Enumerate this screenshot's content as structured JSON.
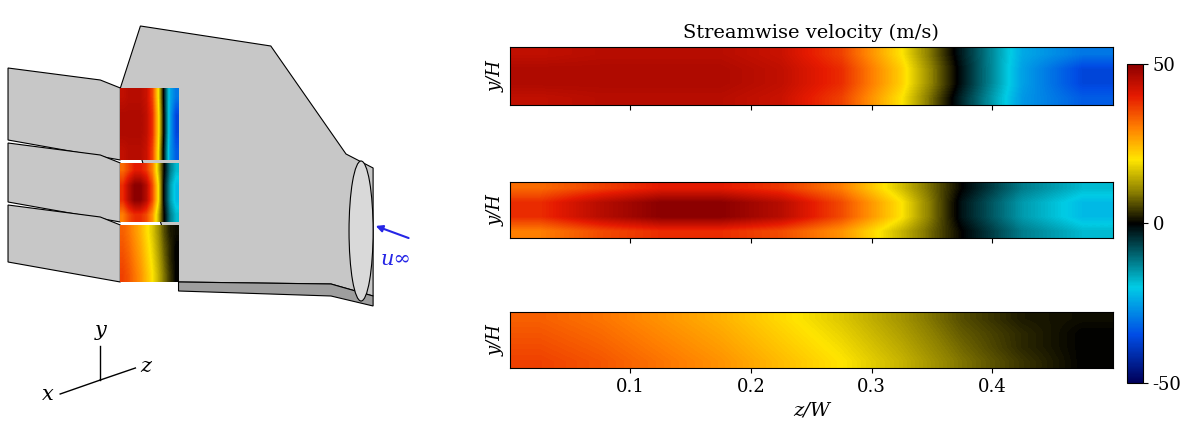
{
  "chart_data": {
    "type": "heatmap",
    "title": "Streamwise velocity (m/s)",
    "x_label": "z/W",
    "y_label": "y/H",
    "xlim": [
      0,
      0.5
    ],
    "xticks": [
      0.1,
      0.2,
      0.3,
      0.4
    ],
    "ylim": [
      0,
      1
    ],
    "tick_labels": "x",
    "colorbar": {
      "range": [
        -50,
        50
      ],
      "ticks": [
        -50,
        0,
        50
      ]
    },
    "panels": [
      {
        "cells": [
          [
            44,
            45,
            45,
            45,
            43,
            36,
            20,
            -4,
            -26,
            -33
          ],
          [
            46,
            46,
            46,
            46,
            44,
            38,
            22,
            -2,
            -25,
            -36
          ],
          [
            46,
            46,
            46,
            46,
            44,
            38,
            22,
            -2,
            -25,
            -36
          ],
          [
            44,
            45,
            45,
            45,
            43,
            36,
            20,
            -3,
            -24,
            -30
          ]
        ]
      },
      {
        "cells": [
          [
            30,
            35,
            38,
            38,
            35,
            28,
            15,
            0,
            -12,
            -18
          ],
          [
            38,
            45,
            50,
            50,
            45,
            35,
            20,
            -2,
            -15,
            -22
          ],
          [
            38,
            45,
            50,
            50,
            45,
            35,
            20,
            -2,
            -15,
            -22
          ],
          [
            32,
            36,
            40,
            40,
            37,
            30,
            16,
            0,
            -12,
            -18
          ]
        ]
      },
      {
        "cells": [
          [
            36,
            34,
            31,
            28,
            24,
            20,
            15,
            9,
            4,
            0
          ],
          [
            35,
            33,
            30,
            27,
            23,
            19,
            14,
            8,
            3,
            0
          ],
          [
            34,
            32,
            29,
            26,
            22,
            18,
            13,
            7,
            3,
            0
          ],
          [
            33,
            31,
            28,
            25,
            21,
            17,
            12,
            6,
            2,
            1
          ]
        ]
      }
    ]
  },
  "diagram": {
    "axis_labels": {
      "x": "x",
      "y": "y",
      "z": "z"
    },
    "inflow_label": "u∞"
  }
}
